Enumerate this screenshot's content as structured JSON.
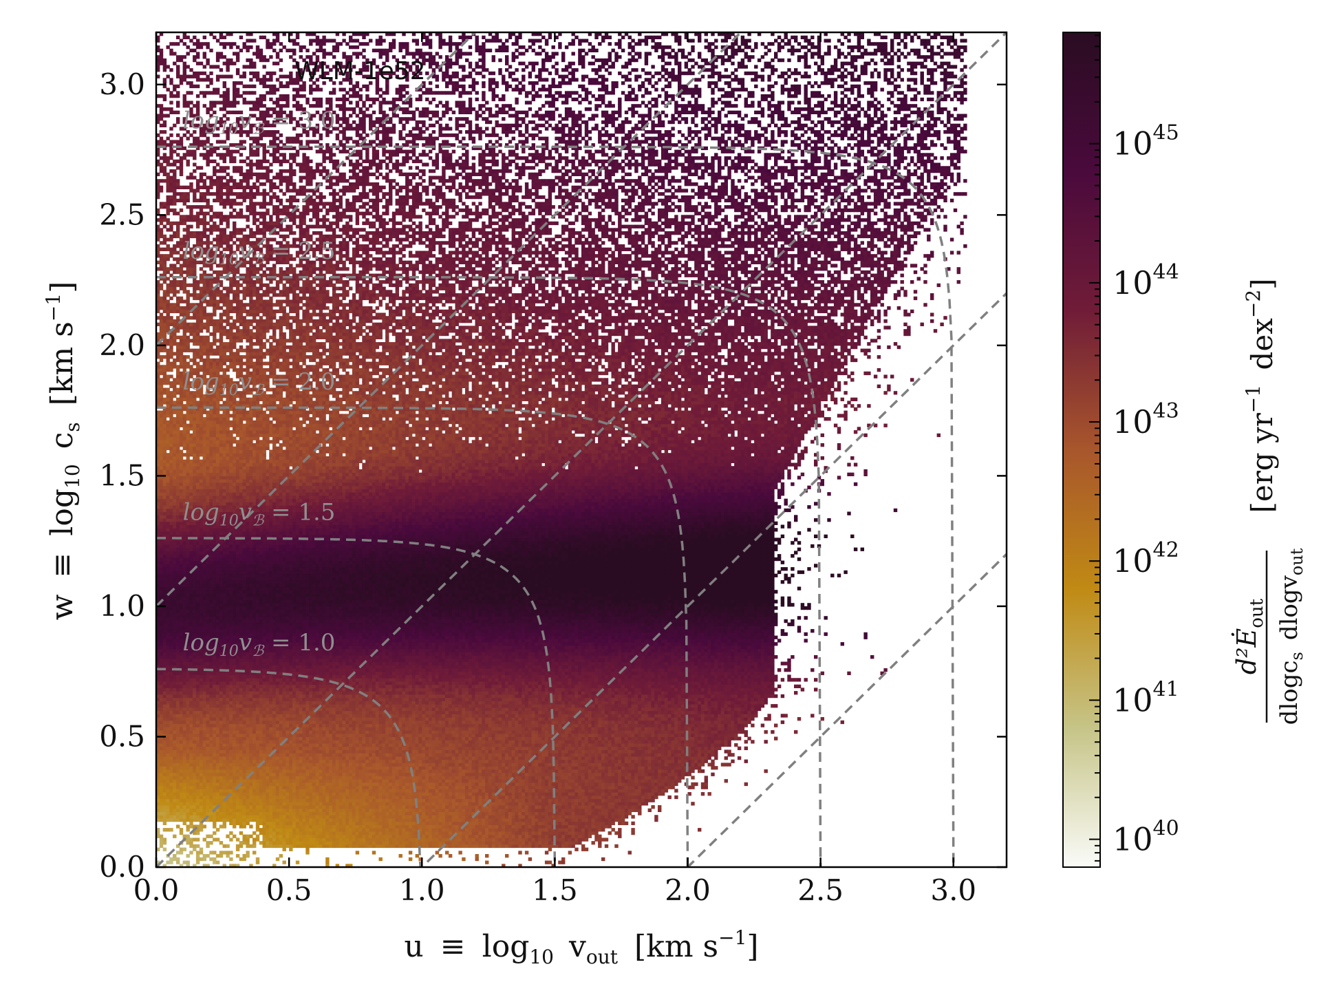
{
  "chart_data": {
    "type": "heatmap",
    "panel_label": "WLM-1e52",
    "x_axis": {
      "label_prefix": "u",
      "label_equiv": "≡",
      "label_log": "log",
      "label_log_sub": "10",
      "label_var": "v",
      "label_var_sub": "out",
      "label_units": "[km s",
      "label_units_sup": "−1",
      "label_units_close": "]",
      "range": [
        0.0,
        3.2
      ],
      "ticks": [
        "0.0",
        "0.5",
        "1.0",
        "1.5",
        "2.0",
        "2.5",
        "3.0"
      ]
    },
    "y_axis": {
      "label_prefix": "w",
      "label_equiv": "≡",
      "label_log": "log",
      "label_log_sub": "10",
      "label_var": "c",
      "label_var_sub": "s",
      "label_units": "[km s",
      "label_units_sup": "−1",
      "label_units_close": "]",
      "range": [
        0.0,
        3.2
      ],
      "ticks": [
        "0.0",
        "0.5",
        "1.0",
        "1.5",
        "2.0",
        "2.5",
        "3.0"
      ]
    },
    "colorbar": {
      "scale": "log",
      "range_exp": [
        39.8,
        45.8
      ],
      "tick_base": "10",
      "tick_exps": [
        "40",
        "41",
        "42",
        "43",
        "44",
        "45"
      ],
      "label_numerator": "d²Ė",
      "label_numerator_sub": "out",
      "label_denominator_a": "dlogc",
      "label_denominator_a_sub": "s",
      "label_denominator_b": "dlogv",
      "label_denominator_b_sub": "out",
      "label_units": "[erg yr",
      "label_units_sup1": "−1",
      "label_units_mid": "dex",
      "label_units_sup2": "−2",
      "label_units_close": "]",
      "colormap": [
        "#fafbf8",
        "#c6c487",
        "#c08a14",
        "#a8562c",
        "#701c38",
        "#4a0a3c",
        "#2a0c22"
      ]
    },
    "bernoulli_curves": {
      "label_prefix": "log",
      "label_sub": "10",
      "label_var": "v",
      "label_var_sub": "ℬ",
      "label_eq": "=",
      "levels": [
        "1.0",
        "1.5",
        "2.0",
        "2.5",
        "3.0"
      ]
    },
    "mach_lines_intercepts": [
      2.0,
      1.0,
      0.0,
      -1.0,
      -2.0
    ],
    "curve_color": "#808080"
  }
}
